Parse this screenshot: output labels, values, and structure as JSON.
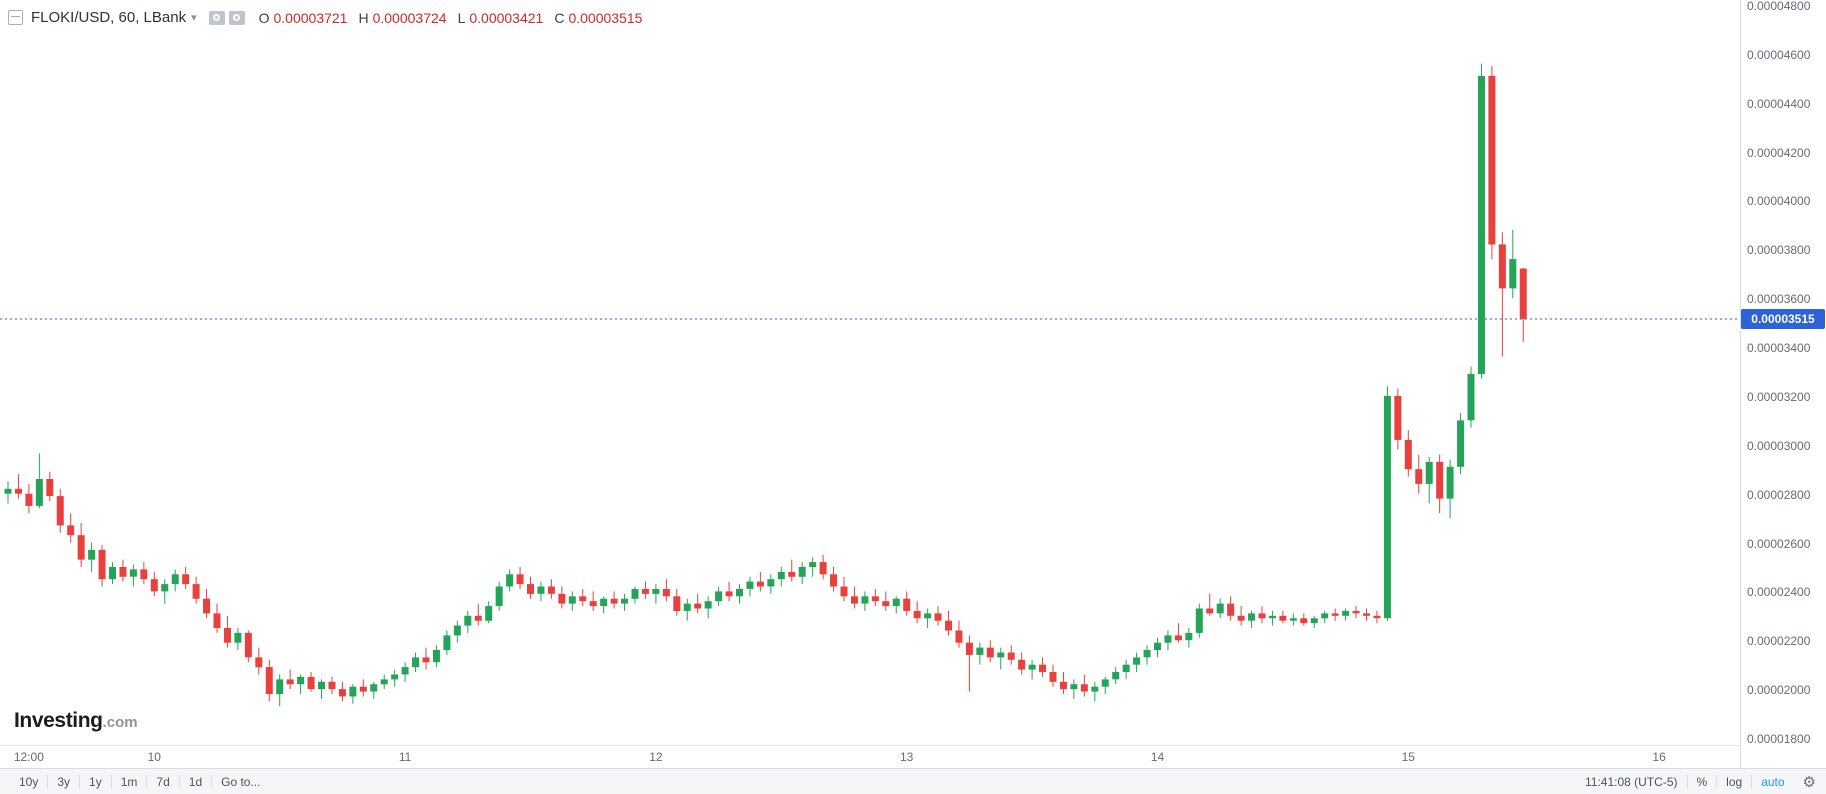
{
  "legend": {
    "symbol_title": "FLOKI/USD, 60, LBank",
    "ohlc": {
      "o_label": "O",
      "o_value": "0.00003721",
      "h_label": "H",
      "h_value": "0.00003724",
      "l_label": "L",
      "l_value": "0.00003421",
      "c_label": "C",
      "c_value": "0.00003515"
    }
  },
  "icons": {
    "dropdown_caret": "▾",
    "gear": "⚙"
  },
  "watermark": {
    "brand": "Investing",
    "suffix": ".com"
  },
  "price_scale": {
    "ticks": [
      {
        "label": "0.00004800",
        "value": 4800
      },
      {
        "label": "0.00004600",
        "value": 4600
      },
      {
        "label": "0.00004400",
        "value": 4400
      },
      {
        "label": "0.00004200",
        "value": 4200
      },
      {
        "label": "0.00004000",
        "value": 4000
      },
      {
        "label": "0.00003800",
        "value": 3800
      },
      {
        "label": "0.00003600",
        "value": 3600
      },
      {
        "label": "0.00003400",
        "value": 3400
      },
      {
        "label": "0.00003200",
        "value": 3200
      },
      {
        "label": "0.00003000",
        "value": 3000
      },
      {
        "label": "0.00002800",
        "value": 2800
      },
      {
        "label": "0.00002600",
        "value": 2600
      },
      {
        "label": "0.00002400",
        "value": 2400
      },
      {
        "label": "0.00002200",
        "value": 2200
      },
      {
        "label": "0.00002000",
        "value": 2000
      },
      {
        "label": "0.00001800",
        "value": 1800
      }
    ],
    "last": {
      "label": "0.00003515",
      "value": 3515
    }
  },
  "time_scale": {
    "ticks": [
      {
        "label": "12:00",
        "hour": 2
      },
      {
        "label": "10",
        "hour": 14
      },
      {
        "label": "11",
        "hour": 38
      },
      {
        "label": "12",
        "hour": 62
      },
      {
        "label": "13",
        "hour": 86
      },
      {
        "label": "14",
        "hour": 110
      },
      {
        "label": "15",
        "hour": 134
      },
      {
        "label": "16",
        "hour": 158
      }
    ]
  },
  "toolbar": {
    "ranges": [
      "10y",
      "3y",
      "1y",
      "1m",
      "7d",
      "1d"
    ],
    "goto": "Go to...",
    "clock": "11:41:08 (UTC-5)",
    "percent": "%",
    "log": "log",
    "auto": "auto"
  },
  "colors": {
    "up": "#24a459",
    "down": "#e8403d",
    "last_price": "#2e62d9",
    "legend_value": "#c92b2b",
    "auto_blue": "#2196f3"
  },
  "chart_data": {
    "type": "candlestick",
    "title": "FLOKI/USD, 60, LBank",
    "symbol": "FLOKI/USD",
    "exchange": "LBank",
    "interval_minutes": 60,
    "price_unit_multiplier": 1e-08,
    "ylim": [
      1800,
      4800
    ],
    "ytick_step": 200,
    "grid": "off",
    "last_candle": {
      "open": "0.00003721",
      "high": "0.00003724",
      "low": "0.00003421",
      "close": "0.00003515"
    },
    "candles_format": "[open, high, low, close] in units of 0.00000001 USD, one candle per hour",
    "candles": [
      [
        2800,
        2850,
        2760,
        2820
      ],
      [
        2820,
        2880,
        2780,
        2800
      ],
      [
        2800,
        2840,
        2720,
        2750
      ],
      [
        2750,
        2965,
        2740,
        2860
      ],
      [
        2860,
        2890,
        2770,
        2790
      ],
      [
        2790,
        2820,
        2640,
        2670
      ],
      [
        2670,
        2720,
        2600,
        2630
      ],
      [
        2630,
        2680,
        2500,
        2530
      ],
      [
        2530,
        2600,
        2480,
        2570
      ],
      [
        2570,
        2590,
        2420,
        2450
      ],
      [
        2450,
        2520,
        2430,
        2500
      ],
      [
        2500,
        2530,
        2440,
        2460
      ],
      [
        2460,
        2510,
        2420,
        2490
      ],
      [
        2490,
        2520,
        2430,
        2450
      ],
      [
        2450,
        2480,
        2380,
        2400
      ],
      [
        2400,
        2450,
        2350,
        2430
      ],
      [
        2430,
        2490,
        2400,
        2470
      ],
      [
        2470,
        2500,
        2410,
        2430
      ],
      [
        2430,
        2460,
        2350,
        2370
      ],
      [
        2370,
        2410,
        2290,
        2310
      ],
      [
        2310,
        2350,
        2230,
        2250
      ],
      [
        2250,
        2300,
        2170,
        2190
      ],
      [
        2190,
        2250,
        2160,
        2230
      ],
      [
        2230,
        2240,
        2110,
        2130
      ],
      [
        2130,
        2170,
        2060,
        2090
      ],
      [
        2090,
        2120,
        1950,
        1980
      ],
      [
        1980,
        2060,
        1930,
        2040
      ],
      [
        2040,
        2080,
        2000,
        2020
      ],
      [
        2020,
        2060,
        1980,
        2050
      ],
      [
        2050,
        2070,
        1990,
        2000
      ],
      [
        2000,
        2040,
        1960,
        2030
      ],
      [
        2030,
        2050,
        1980,
        2000
      ],
      [
        2000,
        2030,
        1950,
        1970
      ],
      [
        1970,
        2020,
        1940,
        2010
      ],
      [
        2010,
        2040,
        1970,
        1990
      ],
      [
        1990,
        2030,
        1960,
        2020
      ],
      [
        2020,
        2060,
        2000,
        2040
      ],
      [
        2040,
        2080,
        2010,
        2060
      ],
      [
        2060,
        2110,
        2030,
        2090
      ],
      [
        2090,
        2150,
        2070,
        2130
      ],
      [
        2130,
        2170,
        2080,
        2110
      ],
      [
        2110,
        2180,
        2090,
        2160
      ],
      [
        2160,
        2240,
        2140,
        2220
      ],
      [
        2220,
        2280,
        2190,
        2260
      ],
      [
        2260,
        2320,
        2230,
        2300
      ],
      [
        2300,
        2350,
        2260,
        2280
      ],
      [
        2280,
        2360,
        2270,
        2340
      ],
      [
        2340,
        2440,
        2320,
        2420
      ],
      [
        2420,
        2490,
        2400,
        2470
      ],
      [
        2470,
        2500,
        2410,
        2430
      ],
      [
        2430,
        2460,
        2370,
        2390
      ],
      [
        2390,
        2440,
        2360,
        2420
      ],
      [
        2420,
        2450,
        2370,
        2390
      ],
      [
        2390,
        2420,
        2330,
        2350
      ],
      [
        2350,
        2400,
        2320,
        2380
      ],
      [
        2380,
        2410,
        2340,
        2360
      ],
      [
        2360,
        2400,
        2320,
        2340
      ],
      [
        2340,
        2380,
        2310,
        2370
      ],
      [
        2370,
        2400,
        2330,
        2350
      ],
      [
        2350,
        2390,
        2320,
        2370
      ],
      [
        2370,
        2420,
        2350,
        2410
      ],
      [
        2410,
        2440,
        2370,
        2390
      ],
      [
        2390,
        2430,
        2350,
        2410
      ],
      [
        2410,
        2450,
        2360,
        2380
      ],
      [
        2380,
        2410,
        2300,
        2320
      ],
      [
        2320,
        2370,
        2280,
        2350
      ],
      [
        2350,
        2390,
        2310,
        2330
      ],
      [
        2330,
        2380,
        2290,
        2360
      ],
      [
        2360,
        2420,
        2340,
        2400
      ],
      [
        2400,
        2440,
        2360,
        2380
      ],
      [
        2380,
        2430,
        2350,
        2410
      ],
      [
        2410,
        2460,
        2380,
        2440
      ],
      [
        2440,
        2480,
        2400,
        2420
      ],
      [
        2420,
        2470,
        2390,
        2450
      ],
      [
        2450,
        2500,
        2420,
        2480
      ],
      [
        2480,
        2530,
        2440,
        2460
      ],
      [
        2460,
        2520,
        2430,
        2500
      ],
      [
        2500,
        2540,
        2460,
        2520
      ],
      [
        2520,
        2550,
        2450,
        2470
      ],
      [
        2470,
        2500,
        2400,
        2420
      ],
      [
        2420,
        2460,
        2360,
        2380
      ],
      [
        2380,
        2420,
        2330,
        2350
      ],
      [
        2350,
        2400,
        2320,
        2380
      ],
      [
        2380,
        2410,
        2340,
        2360
      ],
      [
        2360,
        2400,
        2320,
        2340
      ],
      [
        2340,
        2380,
        2310,
        2370
      ],
      [
        2370,
        2400,
        2300,
        2320
      ],
      [
        2320,
        2360,
        2270,
        2290
      ],
      [
        2290,
        2330,
        2250,
        2310
      ],
      [
        2310,
        2340,
        2260,
        2280
      ],
      [
        2280,
        2320,
        2220,
        2240
      ],
      [
        2240,
        2280,
        2170,
        2190
      ],
      [
        2190,
        2220,
        1990,
        2140
      ],
      [
        2140,
        2190,
        2100,
        2170
      ],
      [
        2170,
        2200,
        2110,
        2130
      ],
      [
        2130,
        2170,
        2080,
        2150
      ],
      [
        2150,
        2180,
        2100,
        2120
      ],
      [
        2120,
        2150,
        2060,
        2080
      ],
      [
        2080,
        2120,
        2040,
        2100
      ],
      [
        2100,
        2130,
        2050,
        2070
      ],
      [
        2070,
        2100,
        2010,
        2030
      ],
      [
        2030,
        2070,
        1980,
        2000
      ],
      [
        2000,
        2040,
        1960,
        2020
      ],
      [
        2020,
        2060,
        1970,
        1990
      ],
      [
        1990,
        2030,
        1950,
        2010
      ],
      [
        2010,
        2050,
        1980,
        2040
      ],
      [
        2040,
        2090,
        2020,
        2070
      ],
      [
        2070,
        2120,
        2040,
        2100
      ],
      [
        2100,
        2150,
        2070,
        2130
      ],
      [
        2130,
        2180,
        2100,
        2160
      ],
      [
        2160,
        2210,
        2130,
        2190
      ],
      [
        2190,
        2240,
        2160,
        2220
      ],
      [
        2220,
        2270,
        2190,
        2200
      ],
      [
        2200,
        2250,
        2170,
        2230
      ],
      [
        2230,
        2350,
        2210,
        2330
      ],
      [
        2330,
        2390,
        2300,
        2310
      ],
      [
        2310,
        2370,
        2290,
        2350
      ],
      [
        2350,
        2380,
        2280,
        2300
      ],
      [
        2300,
        2340,
        2260,
        2280
      ],
      [
        2280,
        2320,
        2250,
        2310
      ],
      [
        2310,
        2340,
        2270,
        2290
      ],
      [
        2290,
        2320,
        2260,
        2300
      ],
      [
        2300,
        2320,
        2270,
        2280
      ],
      [
        2280,
        2310,
        2260,
        2290
      ],
      [
        2290,
        2310,
        2260,
        2270
      ],
      [
        2270,
        2300,
        2250,
        2290
      ],
      [
        2290,
        2320,
        2270,
        2310
      ],
      [
        2310,
        2330,
        2280,
        2300
      ],
      [
        2300,
        2330,
        2280,
        2320
      ],
      [
        2320,
        2340,
        2290,
        2310
      ],
      [
        2310,
        2330,
        2280,
        2300
      ],
      [
        2300,
        2320,
        2270,
        2290
      ],
      [
        2290,
        3240,
        2280,
        3200
      ],
      [
        3200,
        3230,
        2980,
        3020
      ],
      [
        3020,
        3060,
        2870,
        2900
      ],
      [
        2900,
        2960,
        2800,
        2840
      ],
      [
        2840,
        2950,
        2760,
        2930
      ],
      [
        2930,
        2960,
        2720,
        2780
      ],
      [
        2780,
        2940,
        2700,
        2910
      ],
      [
        2910,
        3130,
        2880,
        3100
      ],
      [
        3100,
        3320,
        3070,
        3290
      ],
      [
        3290,
        4560,
        3270,
        4510
      ],
      [
        4510,
        4550,
        3760,
        3820
      ],
      [
        3820,
        3870,
        3360,
        3640
      ],
      [
        3640,
        3880,
        3600,
        3760
      ],
      [
        3721,
        3724,
        3421,
        3515
      ]
    ]
  }
}
